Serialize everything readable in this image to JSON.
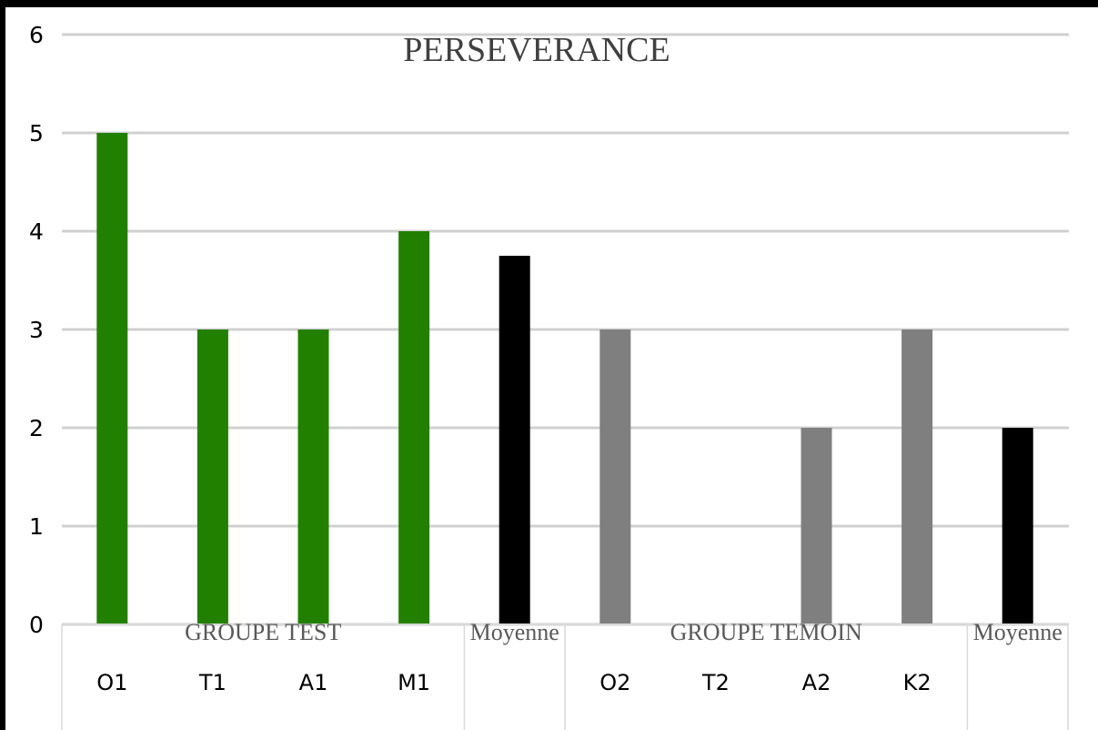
{
  "chart_data": {
    "type": "bar",
    "title": "PERSEVERANCE",
    "xlabel": "",
    "ylabel": "",
    "ylim": [
      0,
      6
    ],
    "y_ticks": [
      "0",
      "1",
      "2",
      "3",
      "4",
      "5",
      "6"
    ],
    "grid": true,
    "legend": "none",
    "categories": [
      "O1",
      "T1",
      "A1",
      "M1",
      "",
      "O2",
      "T2",
      "A2",
      "K2",
      ""
    ],
    "values": [
      5,
      3,
      3,
      4,
      3.75,
      3,
      0,
      2,
      3,
      2
    ],
    "bar_colors": [
      "#228000",
      "#228000",
      "#228000",
      "#228000",
      "#000000",
      "#7f7f7f",
      "#7f7f7f",
      "#7f7f7f",
      "#7f7f7f",
      "#000000"
    ],
    "groups": [
      {
        "label": "GROUPE TEST",
        "categories": [
          "O1",
          "T1",
          "A1",
          "M1"
        ]
      },
      {
        "label": "Moyenne",
        "categories": [
          ""
        ]
      },
      {
        "label": "GROUPE TEMOIN",
        "categories": [
          "O2",
          "T2",
          "A2",
          "K2"
        ]
      },
      {
        "label": "Moyenne",
        "categories": [
          ""
        ]
      }
    ]
  }
}
